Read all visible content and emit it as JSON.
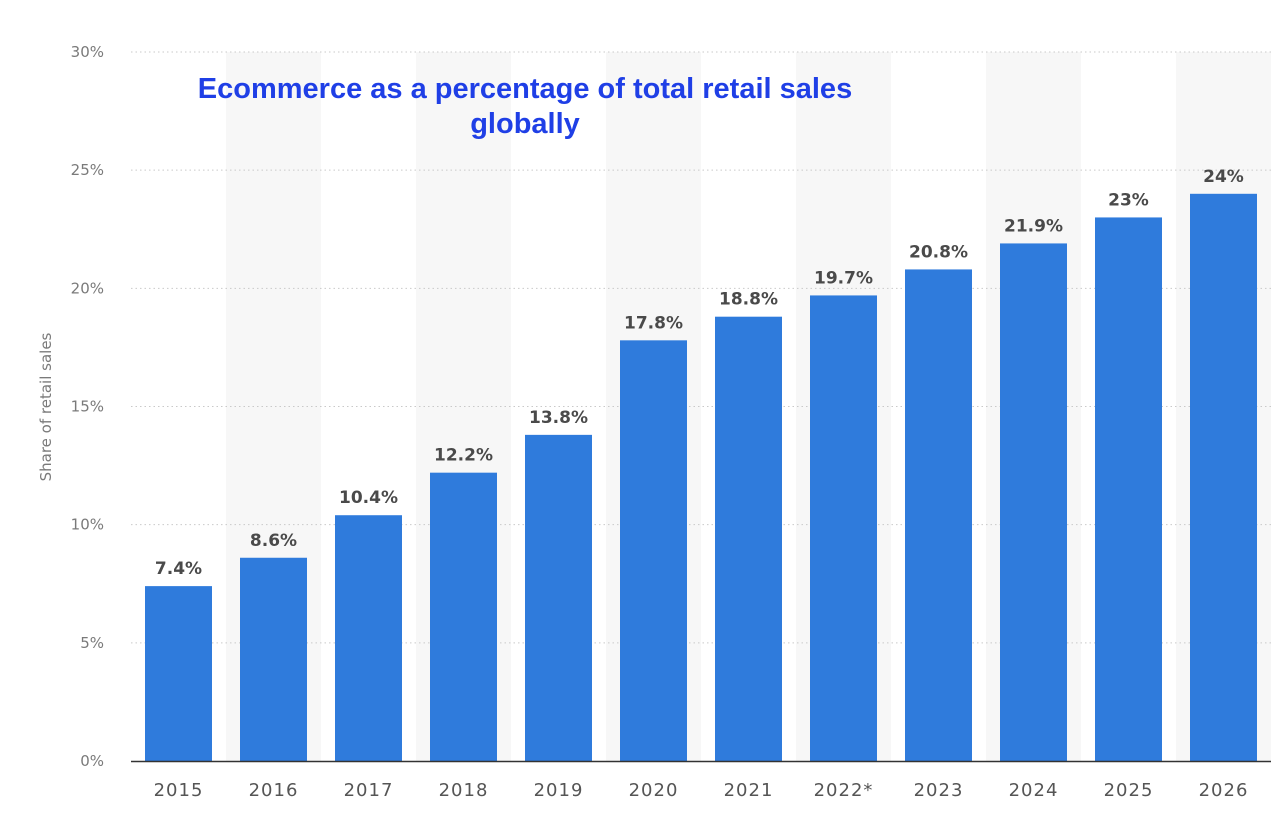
{
  "chart_data": {
    "type": "bar",
    "title": "Ecommerce as a percentage of total retail sales globally",
    "ylabel": "Share of retail sales",
    "xlabel": "",
    "categories": [
      "2015",
      "2016",
      "2017",
      "2018",
      "2019",
      "2020",
      "2021",
      "2022*",
      "2023",
      "2024",
      "2025",
      "2026"
    ],
    "values": [
      7.4,
      8.6,
      10.4,
      12.2,
      13.8,
      17.8,
      18.8,
      19.7,
      20.8,
      21.9,
      23,
      24
    ],
    "value_labels": [
      "7.4%",
      "8.6%",
      "10.4%",
      "12.2%",
      "13.8%",
      "17.8%",
      "18.8%",
      "19.7%",
      "20.8%",
      "21.9%",
      "23%",
      "24%"
    ],
    "ylim": [
      0,
      30
    ],
    "yticks": [
      0,
      5,
      10,
      15,
      20,
      25,
      30
    ],
    "ytick_labels": [
      "0%",
      "5%",
      "10%",
      "15%",
      "20%",
      "25%",
      "30%"
    ],
    "grid": true,
    "bar_color": "#2f7bdc",
    "title_color": "#1f3fe6"
  }
}
